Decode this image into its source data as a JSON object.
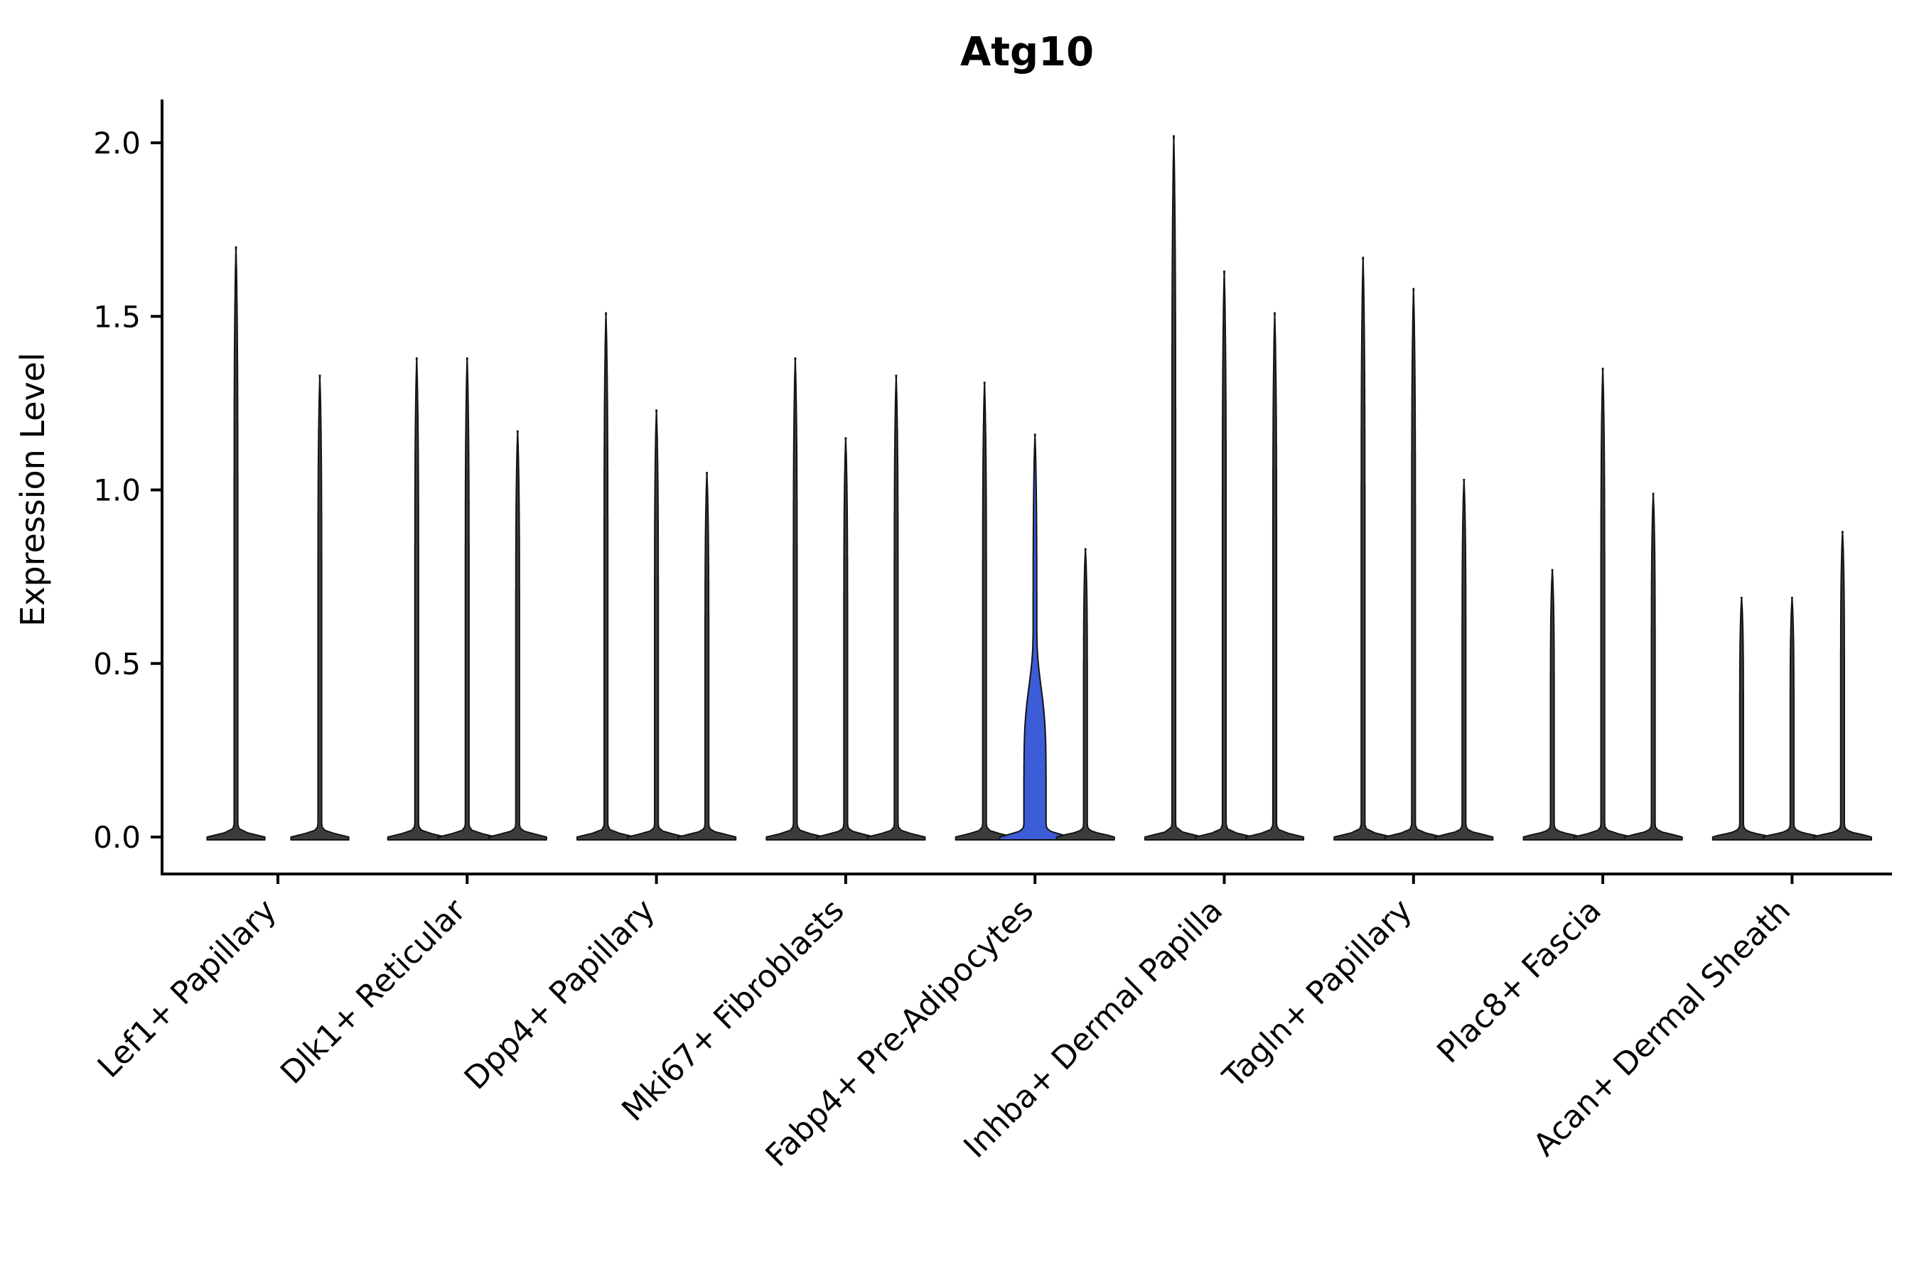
{
  "chart_data": {
    "type": "violin",
    "title": "Atg10",
    "ylabel": "Expression Level",
    "xlabel": "",
    "ylim": [
      0,
      2.0
    ],
    "yticks": [
      0.0,
      0.5,
      1.0,
      1.5,
      2.0
    ],
    "grid": false,
    "legend": "none",
    "colors": {
      "violin_fill": "#3c3c3c",
      "highlight_fill": "#3d5cd7",
      "stroke": "#141414",
      "axis": "#000000"
    },
    "groups": [
      {
        "label": "Lef1+ Papillary",
        "violins": [
          {
            "max": 1.7
          },
          {
            "max": 1.33
          }
        ]
      },
      {
        "label": "Dlk1+ Reticular",
        "violins": [
          {
            "max": 1.38
          },
          {
            "max": 1.38
          },
          {
            "max": 1.17
          }
        ]
      },
      {
        "label": "Dpp4+ Papillary",
        "violins": [
          {
            "max": 1.51
          },
          {
            "max": 1.23
          },
          {
            "max": 1.05
          }
        ]
      },
      {
        "label": "Mki67+ Fibroblasts",
        "violins": [
          {
            "max": 1.38
          },
          {
            "max": 1.15
          },
          {
            "max": 1.33
          }
        ]
      },
      {
        "label": "Fabp4+ Pre-Adipocytes",
        "violins": [
          {
            "max": 1.31
          },
          {
            "max": 1.16,
            "highlighted": true,
            "body_top": 0.55
          },
          {
            "max": 0.83
          }
        ]
      },
      {
        "label": "Inhba+ Dermal Papilla",
        "violins": [
          {
            "max": 2.02
          },
          {
            "max": 1.63
          },
          {
            "max": 1.51
          }
        ]
      },
      {
        "label": "Tagln+ Papillary",
        "violins": [
          {
            "max": 1.67
          },
          {
            "max": 1.58
          },
          {
            "max": 1.03
          }
        ]
      },
      {
        "label": "Plac8+ Fascia",
        "violins": [
          {
            "max": 0.77
          },
          {
            "max": 1.35
          },
          {
            "max": 0.99
          }
        ]
      },
      {
        "label": "Acan+ Dermal Sheath",
        "violins": [
          {
            "max": 0.69
          },
          {
            "max": 0.69
          },
          {
            "max": 0.88
          }
        ]
      }
    ]
  }
}
